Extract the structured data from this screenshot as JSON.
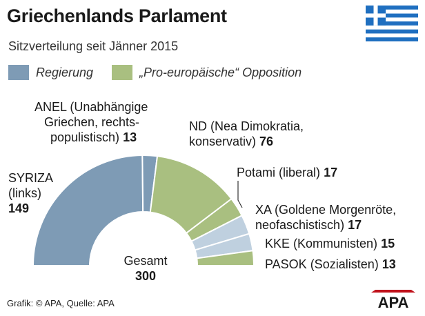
{
  "header": {
    "title": "Griechenlands Parlament",
    "subtitle": "Sitzverteilung seit Jänner 2015"
  },
  "legend": [
    {
      "label": "Regierung",
      "color": "#7e9bb5"
    },
    {
      "label": "„Pro-europäische“ Opposition",
      "color": "#a9bf80"
    }
  ],
  "chart_data": {
    "type": "pie",
    "subtype": "half-donut",
    "title": "Griechenlands Parlament",
    "subtitle": "Sitzverteilung seit Jänner 2015",
    "total_label": "Gesamt",
    "total": 300,
    "series": [
      {
        "name": "SYRIZA",
        "desc": "(links)",
        "value": 149,
        "group": "Regierung",
        "color": "#7e9bb5"
      },
      {
        "name": "ANEL",
        "desc": "(Unabhängige Griechen, rechtspopulistisch)",
        "value": 13,
        "group": "Regierung",
        "color": "#7e9bb5"
      },
      {
        "name": "ND",
        "desc": "(Nea Dimokratia, konservativ)",
        "value": 76,
        "group": "„Pro-europäische“ Opposition",
        "color": "#a9bf80"
      },
      {
        "name": "Potami",
        "desc": "(liberal)",
        "value": 17,
        "group": "„Pro-europäische“ Opposition",
        "color": "#a9bf80"
      },
      {
        "name": "XA",
        "desc": "(Goldene Morgenröte, neofaschistisch)",
        "value": 17,
        "group": "other",
        "color": "#bfd0df"
      },
      {
        "name": "KKE",
        "desc": "(Kommunisten)",
        "value": 15,
        "group": "other",
        "color": "#bfd0df"
      },
      {
        "name": "PASOK",
        "desc": "(Sozialisten)",
        "value": 13,
        "group": "„Pro-europäische“ Opposition",
        "color": "#a9bf80"
      }
    ]
  },
  "labels": {
    "anel_l1": "ANEL (Unabhängige",
    "anel_l2": "Griechen, rechts-",
    "anel_l3": "populistisch)",
    "anel_v": "13",
    "nd_l1": "ND (Nea Dimokratia,",
    "nd_l2": "konservativ)",
    "nd_v": "76",
    "syriza_l1": "SYRIZA",
    "syriza_l2": "(links)",
    "syriza_v": "149",
    "potami_l1": "Potami (liberal)",
    "potami_v": "17",
    "xa_l1": "XA (Goldene Morgenröte,",
    "xa_l2": "neofaschistisch)",
    "xa_v": "17",
    "kke_l1": "KKE (Kommunisten)",
    "kke_v": "15",
    "pasok_l1": "PASOK (Sozialisten)",
    "pasok_v": "13",
    "total_label": "Gesamt",
    "total_v": "300"
  },
  "footer": {
    "credit": "Grafik: © APA, Quelle: APA",
    "logo_text": "APA",
    "flag_icon": "greece-flag-icon"
  }
}
